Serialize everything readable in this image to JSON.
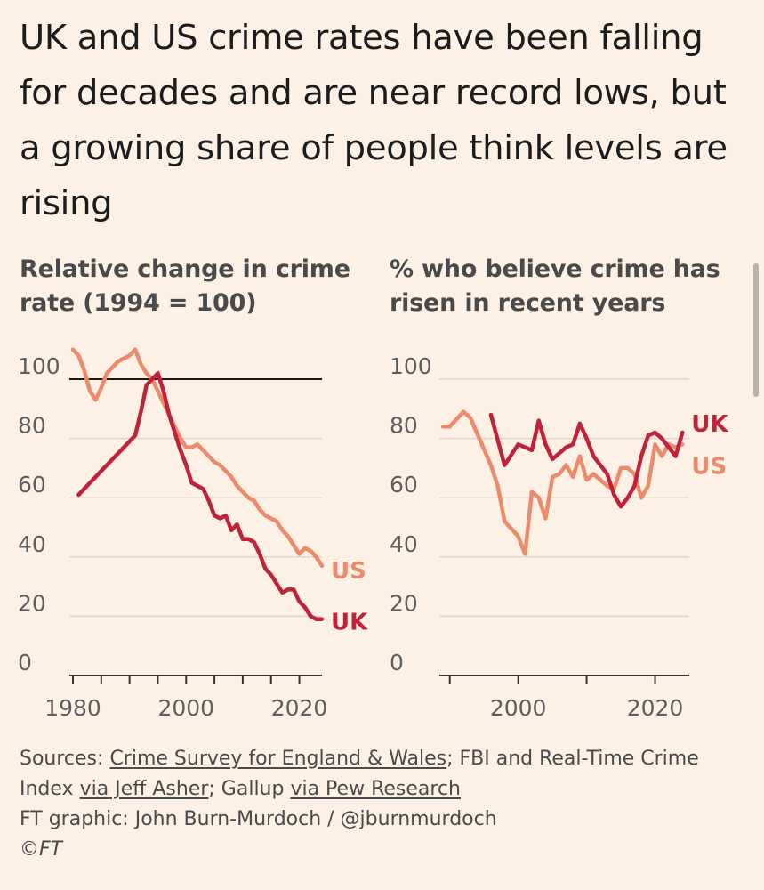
{
  "title": "UK and US crime rates have been falling for decades and are near record lows, but a growing share of people think levels are rising",
  "colors": {
    "uk": "#c0223a",
    "us": "#ec8a6c",
    "grid": "#e2d6cb",
    "axis": "#333333",
    "reference": "#1a1a1a",
    "background": "#fdf1e6"
  },
  "chart_data": [
    {
      "type": "line",
      "title": "Relative change in crime rate (1994 = 100)",
      "xlim": [
        1980,
        2024
      ],
      "ylim": [
        0,
        110
      ],
      "xticks": [
        1980,
        1985,
        1990,
        1995,
        2000,
        2005,
        2010,
        2015,
        2020
      ],
      "xtick_labels": [
        "1980",
        "2000",
        "2020"
      ],
      "yticks": [
        0,
        20,
        40,
        60,
        80,
        100
      ],
      "ytick_labels": [
        "0",
        "20",
        "40",
        "60",
        "80",
        "100"
      ],
      "reference_line": 100,
      "series": [
        {
          "name": "US",
          "label": "US",
          "color": "#ec8a6c",
          "x": [
            1980,
            1981,
            1982,
            1983,
            1984,
            1985,
            1986,
            1987,
            1988,
            1989,
            1990,
            1991,
            1992,
            1993,
            1994,
            1995,
            1996,
            1997,
            1998,
            1999,
            2000,
            2001,
            2002,
            2003,
            2004,
            2005,
            2006,
            2007,
            2008,
            2009,
            2010,
            2011,
            2012,
            2013,
            2014,
            2015,
            2016,
            2017,
            2018,
            2019,
            2020,
            2021,
            2022,
            2023,
            2024
          ],
          "y": [
            110,
            108,
            103,
            96,
            93,
            97,
            102,
            104,
            106,
            107,
            108,
            110,
            105,
            102,
            100,
            96,
            92,
            88,
            84,
            80,
            77,
            77,
            78,
            76,
            74,
            72,
            71,
            69,
            67,
            64,
            62,
            60,
            59,
            56,
            54,
            53,
            52,
            49,
            47,
            44,
            41,
            43,
            42,
            40,
            37
          ]
        },
        {
          "name": "UK",
          "label": "UK",
          "color": "#c0223a",
          "x": [
            1981,
            1982,
            1983,
            1984,
            1985,
            1986,
            1987,
            1988,
            1989,
            1990,
            1991,
            1992,
            1993,
            1994,
            1995,
            1996,
            1997,
            1998,
            1999,
            2000,
            2001,
            2002,
            2003,
            2004,
            2005,
            2006,
            2007,
            2008,
            2009,
            2010,
            2011,
            2012,
            2013,
            2014,
            2015,
            2016,
            2017,
            2018,
            2019,
            2020,
            2021,
            2022,
            2023,
            2024
          ],
          "y": [
            61,
            63,
            65,
            67,
            69,
            71,
            73,
            75,
            77,
            79,
            81,
            89,
            98,
            100,
            102,
            96,
            88,
            82,
            76,
            71,
            65,
            64,
            63,
            59,
            54,
            53,
            54,
            49,
            51,
            46,
            46,
            45,
            41,
            36,
            34,
            31,
            28,
            29,
            29,
            25,
            23,
            20,
            19,
            19
          ]
        }
      ]
    },
    {
      "type": "line",
      "title": "% who believe crime has risen in recent years",
      "xlim": [
        1989,
        2025
      ],
      "ylim": [
        0,
        110
      ],
      "xticks": [
        1990,
        2000,
        2010,
        2020
      ],
      "xtick_labels": [
        "2000",
        "2020"
      ],
      "yticks": [
        0,
        20,
        40,
        60,
        80,
        100
      ],
      "ytick_labels": [
        "0",
        "20",
        "40",
        "60",
        "80",
        "100"
      ],
      "series": [
        {
          "name": "US",
          "label": "US",
          "color": "#ec8a6c",
          "x": [
            1989,
            1990,
            1992,
            1993,
            1996,
            1997,
            1998,
            2000,
            2001,
            2002,
            2003,
            2004,
            2005,
            2006,
            2007,
            2008,
            2009,
            2010,
            2011,
            2013,
            2014,
            2015,
            2016,
            2017,
            2018,
            2019,
            2020,
            2021,
            2022,
            2023,
            2024
          ],
          "y": [
            84,
            84,
            89,
            87,
            71,
            64,
            52,
            47,
            41,
            62,
            60,
            53,
            67,
            68,
            71,
            67,
            74,
            66,
            68,
            64,
            63,
            70,
            70,
            68,
            60,
            64,
            78,
            74,
            78,
            77,
            78
          ]
        },
        {
          "name": "UK",
          "label": "UK",
          "color": "#c0223a",
          "x": [
            1996,
            1998,
            2000,
            2001,
            2002,
            2003,
            2004,
            2005,
            2006,
            2007,
            2008,
            2009,
            2010,
            2011,
            2012,
            2013,
            2014,
            2015,
            2016,
            2017,
            2018,
            2019,
            2020,
            2021,
            2022,
            2023,
            2024
          ],
          "y": [
            88,
            71,
            78,
            77,
            76,
            86,
            78,
            73,
            75,
            77,
            78,
            85,
            80,
            74,
            71,
            68,
            61,
            57,
            60,
            64,
            74,
            81,
            82,
            80,
            77,
            74,
            82
          ]
        }
      ]
    }
  ],
  "footer": {
    "sources_prefix": "Sources: ",
    "source1": "Crime Survey for England & Wales",
    "sep1": "; FBI and Real-Time Crime",
    "sources_line2_prefix": "Index ",
    "source2": "via Jeff Asher",
    "sep2": "; Gallup ",
    "source3": "via Pew Research",
    "credit": "FT graphic: John Burn-Murdoch / @jburnmurdoch",
    "copyright": "©FT"
  }
}
